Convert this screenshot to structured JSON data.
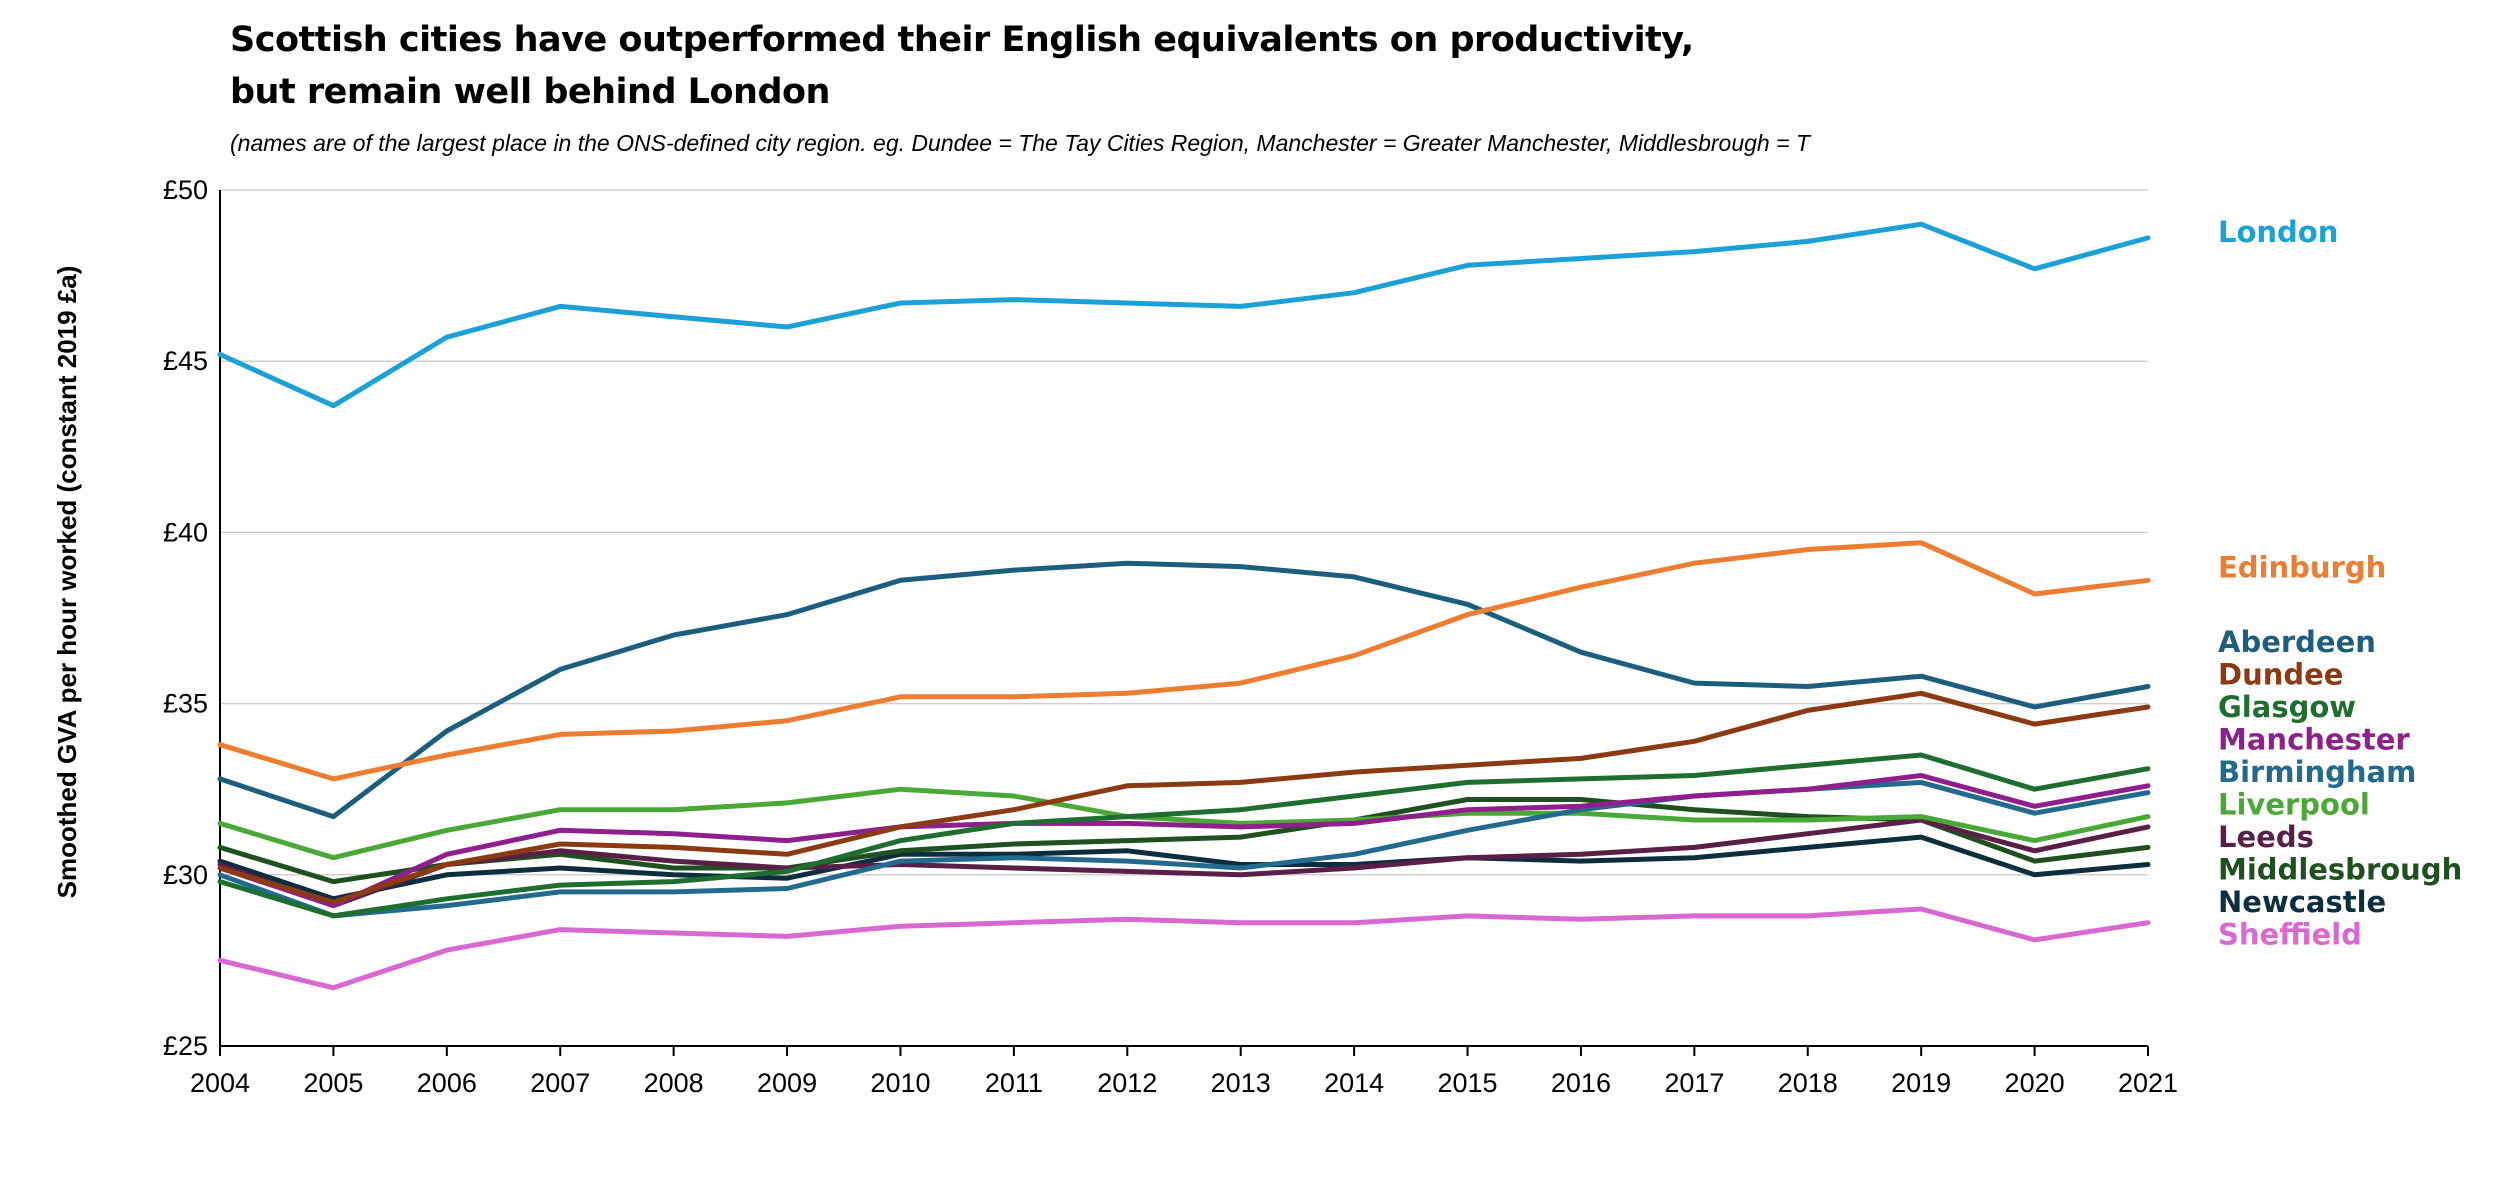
{
  "title_line1": "Scottish cities have outperformed their English equivalents on productivity,",
  "title_line2": "but remain well behind London",
  "subtitle": "(names are of the largest place in the ONS-defined city region. eg. Dundee = The Tay Cities Region, Manchester = Greater Manchester, Middlesbrough = T",
  "chart_data": {
    "type": "line",
    "ylabel": "Smoothed GVA per hour worked (constant 2019 £a)",
    "ylim": [
      25,
      50
    ],
    "yticks": [
      "£25",
      "£30",
      "£35",
      "£40",
      "£45",
      "£50"
    ],
    "x": [
      "2004",
      "2005",
      "2006",
      "2007",
      "2008",
      "2009",
      "2010",
      "2011",
      "2012",
      "2013",
      "2014",
      "2015",
      "2016",
      "2017",
      "2018",
      "2019",
      "2020",
      "2021"
    ],
    "grid": "horizontal",
    "legend": "right, labels at line ends",
    "series": [
      {
        "name": "London",
        "color": "#1ba1d8",
        "values": [
          45.2,
          43.7,
          45.7,
          46.6,
          46.3,
          46.0,
          46.7,
          46.8,
          46.7,
          46.6,
          47.0,
          47.8,
          48.0,
          48.2,
          48.5,
          49.0,
          47.7,
          48.6
        ]
      },
      {
        "name": "Edinburgh",
        "color": "#ed7d31",
        "values": [
          33.8,
          32.8,
          33.5,
          34.1,
          34.2,
          34.5,
          35.2,
          35.2,
          35.3,
          35.6,
          36.4,
          37.6,
          38.4,
          39.1,
          39.5,
          39.7,
          38.2,
          38.6
        ]
      },
      {
        "name": "Aberdeen",
        "color": "#1c5e7e",
        "values": [
          32.8,
          31.7,
          34.2,
          36.0,
          37.0,
          37.6,
          38.6,
          38.9,
          39.1,
          39.0,
          38.7,
          37.9,
          36.5,
          35.6,
          35.5,
          35.8,
          34.9,
          35.5
        ]
      },
      {
        "name": "Dundee",
        "color": "#8b3a12",
        "values": [
          30.2,
          29.2,
          30.3,
          30.9,
          30.8,
          30.6,
          31.4,
          31.9,
          32.6,
          32.7,
          33.0,
          33.2,
          33.4,
          33.9,
          34.8,
          35.3,
          34.4,
          34.9
        ]
      },
      {
        "name": "Glasgow",
        "color": "#1e6e2f",
        "values": [
          29.8,
          28.8,
          29.3,
          29.7,
          29.8,
          30.1,
          31.0,
          31.5,
          31.7,
          31.9,
          32.3,
          32.7,
          32.8,
          32.9,
          33.2,
          33.5,
          32.5,
          33.1
        ]
      },
      {
        "name": "Manchester",
        "color": "#8e1f8c",
        "values": [
          30.2,
          29.1,
          30.6,
          31.3,
          31.2,
          31.0,
          31.4,
          31.5,
          31.5,
          31.4,
          31.5,
          31.9,
          32.0,
          32.3,
          32.5,
          32.9,
          32.0,
          32.6
        ]
      },
      {
        "name": "Birmingham",
        "color": "#236b8e",
        "values": [
          30.0,
          28.8,
          29.1,
          29.5,
          29.5,
          29.6,
          30.4,
          30.5,
          30.4,
          30.2,
          30.6,
          31.3,
          31.9,
          32.3,
          32.5,
          32.7,
          31.8,
          32.4
        ]
      },
      {
        "name": "Liverpool",
        "color": "#4aa936",
        "values": [
          31.5,
          30.5,
          31.3,
          31.9,
          31.9,
          32.1,
          32.5,
          32.3,
          31.7,
          31.5,
          31.6,
          31.8,
          31.8,
          31.6,
          31.6,
          31.7,
          31.0,
          31.7
        ]
      },
      {
        "name": "Leeds",
        "color": "#5a1f46",
        "values": [
          30.3,
          29.1,
          30.3,
          30.7,
          30.4,
          30.2,
          30.3,
          30.2,
          30.1,
          30.0,
          30.2,
          30.5,
          30.6,
          30.8,
          31.2,
          31.6,
          30.7,
          31.4
        ]
      },
      {
        "name": "Middlesbrough",
        "color": "#1e5020",
        "values": [
          30.8,
          29.8,
          30.3,
          30.6,
          30.2,
          30.2,
          30.7,
          30.9,
          31.0,
          31.1,
          31.6,
          32.2,
          32.2,
          31.9,
          31.7,
          31.6,
          30.4,
          30.8
        ]
      },
      {
        "name": "Newcastle",
        "color": "#0d2e3f",
        "values": [
          30.4,
          29.3,
          30.0,
          30.2,
          30.0,
          29.9,
          30.6,
          30.6,
          30.7,
          30.3,
          30.3,
          30.5,
          30.4,
          30.5,
          30.8,
          31.1,
          30.0,
          30.3
        ]
      },
      {
        "name": "Sheffield",
        "color": "#d968d2",
        "values": [
          27.5,
          26.7,
          27.8,
          28.4,
          28.3,
          28.2,
          28.5,
          28.6,
          28.7,
          28.6,
          28.6,
          28.8,
          28.7,
          28.8,
          28.8,
          29.0,
          28.1,
          28.6
        ]
      }
    ]
  }
}
